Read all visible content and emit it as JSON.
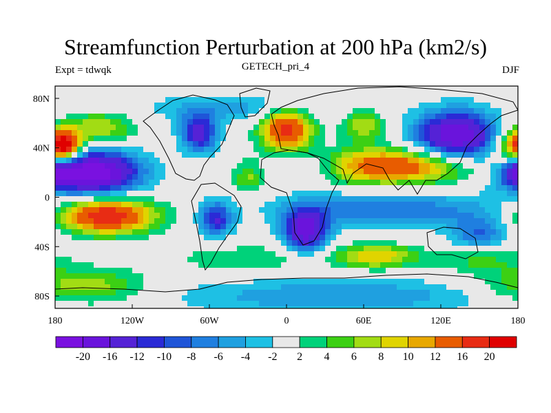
{
  "header": {
    "title": "Streamfunction Perturbation at 200 hPa (km2/s)",
    "subtitle": "GETECH_pri_4",
    "left_string": "Expt = tdwqk",
    "right_string": "DJF"
  },
  "chart_data": {
    "type": "heatmap",
    "title": "Streamfunction Perturbation at 200 hPa (km2/s)",
    "subtitle": "GETECH_pri_4",
    "left_label": "Expt = tdwqk",
    "right_label": "DJF",
    "x_range": [
      -180,
      180
    ],
    "y_range": [
      -90,
      90
    ],
    "x_ticks": [
      {
        "value": -180,
        "label": "180"
      },
      {
        "value": -120,
        "label": "120W"
      },
      {
        "value": -60,
        "label": "60W"
      },
      {
        "value": 0,
        "label": "0"
      },
      {
        "value": 60,
        "label": "60E"
      },
      {
        "value": 120,
        "label": "120E"
      },
      {
        "value": 180,
        "label": "180"
      }
    ],
    "y_ticks": [
      {
        "value": 80,
        "label": "80N"
      },
      {
        "value": 40,
        "label": "40N"
      },
      {
        "value": 0,
        "label": "0"
      },
      {
        "value": -40,
        "label": "40S"
      },
      {
        "value": -80,
        "label": "80S"
      }
    ],
    "levels": [
      -20,
      -16,
      -12,
      -10,
      -8,
      -6,
      -4,
      -2,
      2,
      4,
      6,
      8,
      10,
      12,
      16,
      20
    ],
    "level_labels": [
      "-20",
      "-16",
      "-12",
      "-10",
      "-8",
      "-6",
      "-4",
      "-2",
      "2",
      "4",
      "6",
      "8",
      "10",
      "12",
      "16",
      "20"
    ],
    "colors": [
      "#7a11e0",
      "#6a14dc",
      "#5522d6",
      "#2a2ad6",
      "#1f55d8",
      "#1f7fe0",
      "#1fa0e0",
      "#1ec0e4",
      "#e8e8e8",
      "#00d27a",
      "#3cd014",
      "#a2dc14",
      "#e0d400",
      "#e8a800",
      "#e85c00",
      "#e82c14",
      "#e00000"
    ],
    "features": [
      {
        "lon": -152,
        "lat": 20,
        "sx": 26,
        "sy": 12,
        "amp": -24
      },
      {
        "lon": -68,
        "lat": 52,
        "sx": 10,
        "sy": 11,
        "amp": -14
      },
      {
        "lon": -146,
        "lat": 56,
        "sx": 20,
        "sy": 9,
        "amp": 8
      },
      {
        "lon": -172,
        "lat": 42,
        "sx": 8,
        "sy": 8,
        "amp": 16
      },
      {
        "lon": -140,
        "lat": -15,
        "sx": 26,
        "sy": 10,
        "amp": 20
      },
      {
        "lon": -55,
        "lat": -18,
        "sx": 9,
        "sy": 10,
        "amp": -12
      },
      {
        "lon": -30,
        "lat": 15,
        "sx": 8,
        "sy": 9,
        "amp": 6
      },
      {
        "lon": 0,
        "lat": 55,
        "sx": 14,
        "sy": 12,
        "amp": 18
      },
      {
        "lon": 20,
        "lat": 25,
        "sx": 20,
        "sy": 9,
        "amp": -6
      },
      {
        "lon": 15,
        "lat": -27,
        "sx": 12,
        "sy": 12,
        "amp": -18
      },
      {
        "lon": 80,
        "lat": 25,
        "sx": 44,
        "sy": 10,
        "amp": 16
      },
      {
        "lon": 60,
        "lat": 58,
        "sx": 12,
        "sy": 9,
        "amp": 8
      },
      {
        "lon": 132,
        "lat": 50,
        "sx": 22,
        "sy": 14,
        "amp": -20
      },
      {
        "lon": 180,
        "lat": 40,
        "sx": 12,
        "sy": 10,
        "amp": 14
      },
      {
        "lon": 180,
        "lat": 20,
        "sx": 8,
        "sy": 8,
        "amp": -10
      },
      {
        "lon": -40,
        "lat": 72,
        "sx": 50,
        "sy": 8,
        "amp": -5
      },
      {
        "lon": 80,
        "lat": -10,
        "sx": 60,
        "sy": 10,
        "amp": -8
      },
      {
        "lon": 70,
        "lat": -48,
        "sx": 22,
        "sy": 7,
        "amp": 10
      },
      {
        "lon": 150,
        "lat": -30,
        "sx": 16,
        "sy": 10,
        "amp": -8
      },
      {
        "lon": 150,
        "lat": -50,
        "sx": 25,
        "sy": 8,
        "amp": 5
      },
      {
        "lon": -160,
        "lat": -72,
        "sx": 35,
        "sy": 10,
        "amp": 8
      },
      {
        "lon": 40,
        "lat": -80,
        "sx": 90,
        "sy": 10,
        "amp": -6
      },
      {
        "lon": -30,
        "lat": -50,
        "sx": 40,
        "sy": 8,
        "amp": 4
      }
    ]
  }
}
